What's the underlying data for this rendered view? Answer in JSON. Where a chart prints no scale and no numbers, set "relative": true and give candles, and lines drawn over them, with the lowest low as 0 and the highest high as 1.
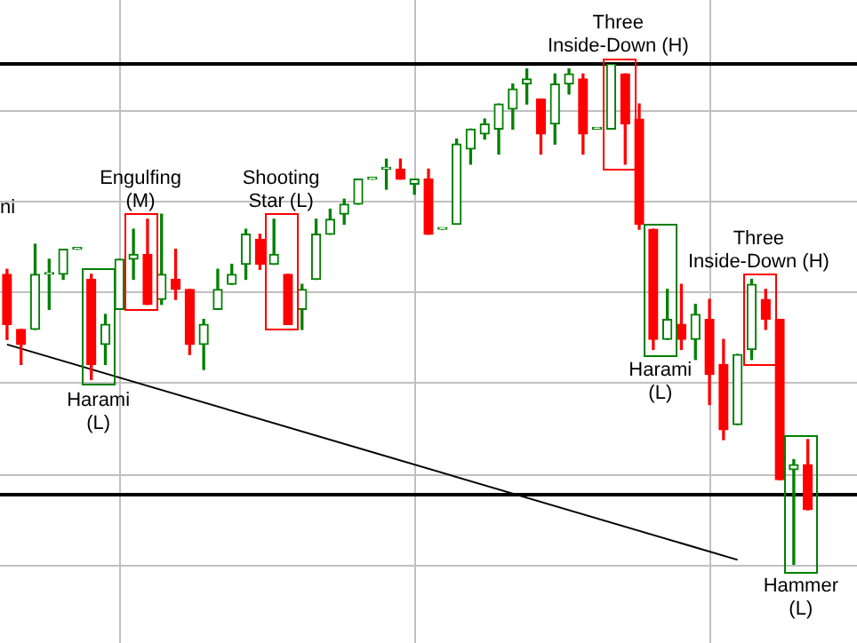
{
  "chart_data": {
    "type": "candlestick",
    "relative": true,
    "grid": true,
    "legend": false,
    "categories": [
      null,
      null,
      null,
      null,
      null,
      null,
      null,
      null,
      null,
      null,
      null,
      null,
      null,
      null,
      null,
      null,
      null,
      null,
      null,
      null,
      null,
      null,
      null,
      null,
      null,
      null,
      null,
      null,
      null,
      null,
      null,
      null,
      null,
      null,
      null,
      null,
      null,
      null,
      null,
      null,
      null,
      null,
      null,
      null,
      null,
      null,
      null,
      null,
      null,
      null,
      null,
      null,
      null,
      null,
      null,
      null,
      null,
      null,
      null,
      null,
      null
    ],
    "ohlc": [
      [
        0.58,
        0.59,
        0.45,
        0.48
      ],
      [
        0.47,
        0.47,
        0.4,
        0.44
      ],
      [
        0.47,
        0.64,
        0.47,
        0.58
      ],
      [
        0.58,
        0.61,
        0.51,
        0.58
      ],
      [
        0.58,
        0.63,
        0.57,
        0.63
      ],
      [
        0.63,
        0.63,
        0.63,
        0.63
      ],
      [
        0.57,
        0.58,
        0.37,
        0.4
      ],
      [
        0.44,
        0.5,
        0.4,
        0.48
      ],
      [
        0.51,
        0.61,
        0.51,
        0.61
      ],
      [
        0.61,
        0.67,
        0.57,
        0.62
      ],
      [
        0.62,
        0.69,
        0.52,
        0.52
      ],
      [
        0.53,
        0.7,
        0.52,
        0.58
      ],
      [
        0.57,
        0.63,
        0.53,
        0.55
      ],
      [
        0.55,
        0.55,
        0.42,
        0.44
      ],
      [
        0.44,
        0.49,
        0.39,
        0.48
      ],
      [
        0.51,
        0.59,
        0.51,
        0.55
      ],
      [
        0.56,
        0.6,
        0.56,
        0.58
      ],
      [
        0.6,
        0.67,
        0.57,
        0.66
      ],
      [
        0.65,
        0.66,
        0.59,
        0.6
      ],
      [
        0.6,
        0.69,
        0.6,
        0.62
      ],
      [
        0.58,
        0.58,
        0.48,
        0.48
      ],
      [
        0.51,
        0.56,
        0.47,
        0.55
      ],
      [
        0.57,
        0.69,
        0.57,
        0.66
      ],
      [
        0.66,
        0.71,
        0.66,
        0.69
      ],
      [
        0.7,
        0.73,
        0.68,
        0.72
      ],
      [
        0.72,
        0.77,
        0.72,
        0.77
      ],
      [
        0.77,
        0.77,
        0.77,
        0.77
      ],
      [
        0.79,
        0.81,
        0.75,
        0.79
      ],
      [
        0.79,
        0.81,
        0.77,
        0.77
      ],
      [
        0.76,
        0.77,
        0.74,
        0.77
      ],
      [
        0.77,
        0.79,
        0.66,
        0.66
      ],
      [
        0.67,
        0.67,
        0.67,
        0.67
      ],
      [
        0.68,
        0.85,
        0.68,
        0.84
      ],
      [
        0.83,
        0.87,
        0.8,
        0.87
      ],
      [
        0.86,
        0.89,
        0.85,
        0.88
      ],
      [
        0.87,
        0.92,
        0.82,
        0.92
      ],
      [
        0.91,
        0.96,
        0.87,
        0.95
      ],
      [
        0.96,
        0.99,
        0.92,
        0.97
      ],
      [
        0.93,
        0.93,
        0.82,
        0.86
      ],
      [
        0.88,
        0.98,
        0.84,
        0.96
      ],
      [
        0.96,
        0.99,
        0.94,
        0.98
      ],
      [
        0.97,
        0.98,
        0.82,
        0.86
      ],
      [
        0.87,
        0.87,
        0.87,
        0.87
      ],
      [
        0.87,
        1,
        0.87,
        1
      ],
      [
        0.98,
        0.98,
        0.8,
        0.88
      ],
      [
        0.89,
        0.92,
        0.67,
        0.68
      ],
      [
        0.67,
        0.67,
        0.43,
        0.45
      ],
      [
        0.45,
        0.55,
        0.45,
        0.49
      ],
      [
        0.48,
        0.56,
        0.43,
        0.45
      ],
      [
        0.45,
        0.52,
        0.41,
        0.5
      ],
      [
        0.49,
        0.53,
        0.32,
        0.38
      ],
      [
        0.4,
        0.45,
        0.25,
        0.27
      ],
      [
        0.28,
        0.42,
        0.28,
        0.42
      ],
      [
        0.43,
        0.57,
        0.41,
        0.56
      ],
      [
        0.53,
        0.55,
        0.47,
        0.49
      ],
      [
        0.49,
        0.49,
        0.17,
        0.17
      ],
      [
        0.19,
        0.21,
        0,
        0.2
      ],
      [
        0.2,
        0.25,
        0.11,
        0.11
      ],
      null,
      null,
      null
    ],
    "series": [
      {
        "type": "line",
        "color": "#000000",
        "values": [
          0.44,
          null,
          null,
          null,
          null,
          null,
          null,
          null,
          null,
          null,
          null,
          null,
          null,
          null,
          null,
          null,
          null,
          null,
          null,
          null,
          null,
          null,
          null,
          null,
          null,
          null,
          null,
          null,
          null,
          null,
          null,
          null,
          null,
          null,
          null,
          null,
          null,
          null,
          null,
          null,
          null,
          null,
          null,
          null,
          null,
          null,
          null,
          null,
          null,
          null,
          null,
          null,
          0.01,
          null,
          null,
          null,
          null,
          null,
          null,
          null,
          null
        ]
      }
    ],
    "ref_lines": [
      {
        "axis": "y",
        "value": 1,
        "color": "#000000"
      },
      {
        "axis": "y",
        "value": 0.14,
        "color": "#000000"
      }
    ],
    "annotations": [
      "ni",
      {
        "text": "Harami\n(L)",
        "y": 0.37
      },
      {
        "text": "Engulfing\n(M)",
        "y": 0.67
      },
      {
        "text": "Shooting\nStar (L)",
        "y": 0.69
      },
      {
        "text": "Three\nInside-Down (H)",
        "y": 1
      },
      {
        "text": "Harami\n(L)",
        "y": 0.43
      },
      {
        "text": "Three\nInside-Down (H)",
        "y": 0.57
      },
      {
        "text": "Hammer\n(L)",
        "y": 0
      }
    ]
  }
}
